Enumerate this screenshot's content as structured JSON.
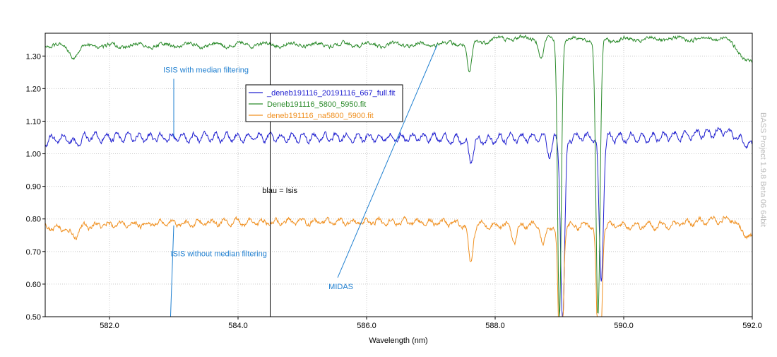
{
  "chart_data": {
    "type": "line",
    "title": "",
    "xlabel": "Wavelength (nm)",
    "ylabel": "",
    "xlim": [
      581.0,
      592.0
    ],
    "ylim": [
      0.5,
      1.37
    ],
    "grid": true,
    "x_ticks": [
      {
        "value": 582.0,
        "label": "582.0"
      },
      {
        "value": 584.0,
        "label": "584.0"
      },
      {
        "value": 586.0,
        "label": "586.0"
      },
      {
        "value": 588.0,
        "label": "588.0"
      },
      {
        "value": 590.0,
        "label": "590.0"
      },
      {
        "value": 592.0,
        "label": "592.0"
      }
    ],
    "y_ticks": [
      {
        "value": 0.5,
        "label": "0.50"
      },
      {
        "value": 0.6,
        "label": "0.60"
      },
      {
        "value": 0.7,
        "label": "0.70"
      },
      {
        "value": 0.8,
        "label": "0.80"
      },
      {
        "value": 0.9,
        "label": "0.90"
      },
      {
        "value": 1.0,
        "label": "1.00"
      },
      {
        "value": 1.1,
        "label": "1.10"
      },
      {
        "value": 1.2,
        "label": "1.20"
      },
      {
        "value": 1.3,
        "label": "1.30"
      }
    ],
    "legend_position": "top-center",
    "series": [
      {
        "name": "_deneb191116_20191116_667_full.fit",
        "color": "#2020d0",
        "baseline": 1.05,
        "noise_amplitude": 0.012,
        "wave_amplitude": 0.012,
        "wave_period_nm": 0.17,
        "anchors": [
          [
            581.0,
            1.04
          ],
          [
            581.3,
            1.05
          ],
          [
            581.45,
            1.03
          ],
          [
            581.6,
            1.05
          ],
          [
            584.0,
            1.05
          ],
          [
            587.0,
            1.05
          ],
          [
            587.6,
            1.04
          ],
          [
            588.5,
            1.05
          ],
          [
            590.5,
            1.05
          ],
          [
            591.6,
            1.07
          ],
          [
            592.0,
            1.02
          ]
        ],
        "absorption_lines": [
          {
            "center": 587.62,
            "depth": 0.06,
            "width": 0.05
          },
          {
            "center": 589.05,
            "depth": 0.56,
            "width": 0.045
          },
          {
            "center": 589.65,
            "depth": 0.44,
            "width": 0.045
          },
          {
            "center": 588.85,
            "depth": 0.05,
            "width": 0.05
          }
        ]
      },
      {
        "name": "Deneb191116_5800_5950.fit",
        "color": "#2a8a2a",
        "baseline": 1.335,
        "noise_amplitude": 0.01,
        "wave_amplitude": 0.006,
        "wave_period_nm": 0.4,
        "anchors": [
          [
            581.0,
            1.335
          ],
          [
            581.3,
            1.33
          ],
          [
            581.45,
            1.295
          ],
          [
            581.6,
            1.33
          ],
          [
            584.0,
            1.335
          ],
          [
            587.0,
            1.335
          ],
          [
            587.5,
            1.34
          ],
          [
            588.2,
            1.355
          ],
          [
            590.0,
            1.35
          ],
          [
            591.6,
            1.355
          ],
          [
            591.85,
            1.3
          ],
          [
            592.0,
            1.275
          ]
        ],
        "absorption_lines": [
          {
            "center": 587.6,
            "depth": 0.1,
            "width": 0.05
          },
          {
            "center": 589.0,
            "depth": 0.85,
            "width": 0.04
          },
          {
            "center": 589.6,
            "depth": 0.85,
            "width": 0.045
          },
          {
            "center": 588.72,
            "depth": 0.06,
            "width": 0.05
          }
        ]
      },
      {
        "name": "deneb191116_na5800_5900.fit",
        "color": "#f09020",
        "baseline": 0.785,
        "noise_amplitude": 0.012,
        "wave_amplitude": 0.008,
        "wave_period_nm": 0.2,
        "anchors": [
          [
            581.0,
            0.775
          ],
          [
            581.3,
            0.77
          ],
          [
            581.45,
            0.745
          ],
          [
            581.6,
            0.78
          ],
          [
            584.0,
            0.79
          ],
          [
            587.0,
            0.79
          ],
          [
            588.0,
            0.78
          ],
          [
            590.5,
            0.78
          ],
          [
            591.7,
            0.8
          ],
          [
            591.9,
            0.75
          ],
          [
            592.0,
            0.74
          ]
        ],
        "absorption_lines": [
          {
            "center": 587.62,
            "depth": 0.12,
            "width": 0.05
          },
          {
            "center": 589.02,
            "depth": 0.6,
            "width": 0.045
          },
          {
            "center": 589.62,
            "depth": 0.6,
            "width": 0.045
          },
          {
            "center": 588.3,
            "depth": 0.05,
            "width": 0.05
          },
          {
            "center": 588.75,
            "depth": 0.06,
            "width": 0.05
          }
        ]
      }
    ],
    "marker_line": {
      "x": 584.5,
      "color": "#000000"
    },
    "annotations": [
      {
        "text": "ISIS with median filtering",
        "x": 583.5,
        "y": 1.25,
        "color": "#1f7fd0",
        "pointer_from": [
          583.0,
          1.23
        ],
        "pointer_to": [
          583.0,
          1.05
        ]
      },
      {
        "text": "blau = Isis",
        "x": 584.65,
        "y": 0.88,
        "color": "#000000"
      },
      {
        "text": "ISIS without median filtering",
        "x": 583.7,
        "y": 0.685,
        "color": "#1f7fd0",
        "pointer_from": [
          583.0,
          0.78
        ],
        "pointer_to": [
          582.95,
          0.5
        ]
      },
      {
        "text": "MIDAS",
        "x": 585.6,
        "y": 0.585,
        "color": "#1f7fd0",
        "pointer_from": [
          585.55,
          0.62
        ],
        "pointer_to": [
          587.1,
          1.335
        ]
      }
    ],
    "side_caption": "BASS Project 1.9.8 Beta 06 64bit"
  }
}
